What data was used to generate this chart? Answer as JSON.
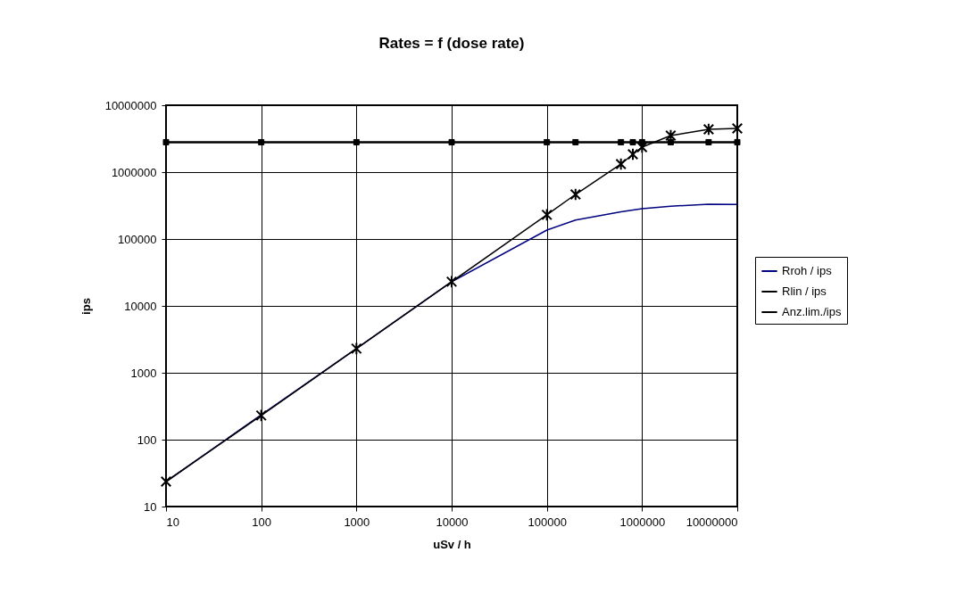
{
  "chart_data": {
    "type": "line",
    "title": "Rates = f (dose rate)",
    "xlabel": "uSv / h",
    "ylabel": "ips",
    "log": "xy",
    "grid": true,
    "legend": "right",
    "line_style": "solid",
    "xlim": [
      10,
      10000000
    ],
    "ylim": [
      10,
      10000000
    ],
    "xticks": [
      10,
      100,
      1000,
      10000,
      100000,
      1000000,
      10000000
    ],
    "yticks": [
      10,
      100,
      1000,
      10000,
      100000,
      1000000,
      10000000
    ],
    "series": [
      {
        "name": "Rroh /  ips",
        "color": "#000080",
        "marker": "none",
        "x": [
          10,
          100,
          1000,
          10000,
          100000,
          200000,
          600000,
          1000000,
          2000000,
          5000000,
          10000000
        ],
        "values": [
          23.6,
          236,
          2300,
          23000,
          136000,
          192000,
          255000,
          284000,
          310000,
          330000,
          328000
        ]
      },
      {
        "name": "Rlin / ips",
        "color": "#000000",
        "marker": "cross",
        "x": [
          10,
          100,
          1000,
          10000,
          100000,
          200000,
          600000,
          800000,
          1000000,
          2000000,
          5000000,
          10000000
        ],
        "values": [
          23.6,
          230,
          2300,
          23000,
          230000,
          464000,
          1320000,
          1850000,
          2360000,
          3520000,
          4370000,
          4500000
        ]
      },
      {
        "name": "Anz.lim./ips",
        "color": "#000000",
        "marker": "square",
        "x": [
          10,
          100,
          1000,
          10000,
          100000,
          200000,
          600000,
          800000,
          1000000,
          2000000,
          5000000,
          10000000
        ],
        "values": [
          2800000,
          2800000,
          2800000,
          2800000,
          2800000,
          2800000,
          2800000,
          2800000,
          2800000,
          2800000,
          2800000,
          2800000
        ]
      }
    ]
  }
}
